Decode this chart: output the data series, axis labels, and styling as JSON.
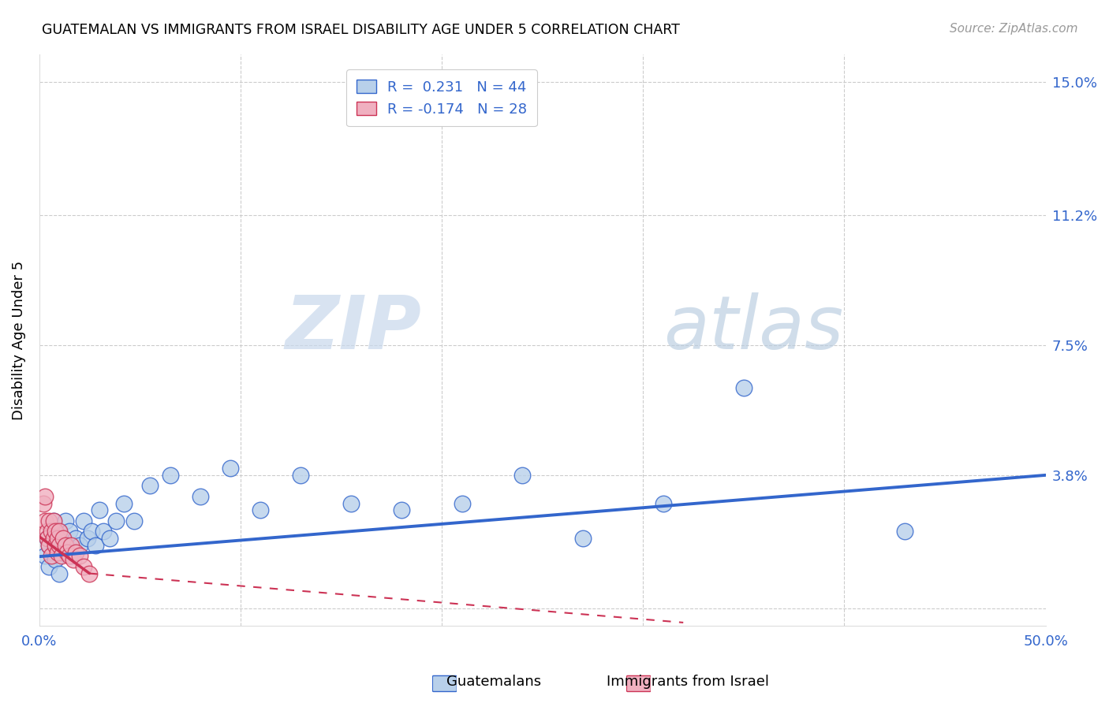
{
  "title": "GUATEMALAN VS IMMIGRANTS FROM ISRAEL DISABILITY AGE UNDER 5 CORRELATION CHART",
  "source": "Source: ZipAtlas.com",
  "ylabel": "Disability Age Under 5",
  "xlim": [
    0.0,
    0.5
  ],
  "ylim": [
    -0.005,
    0.158
  ],
  "ytick_positions": [
    0.0,
    0.038,
    0.075,
    0.112,
    0.15
  ],
  "ytick_labels": [
    "",
    "3.8%",
    "7.5%",
    "11.2%",
    "15.0%"
  ],
  "legend_r1": "R =  0.231   N = 44",
  "legend_r2": "R = -0.174   N = 28",
  "color_blue": "#b8d0ea",
  "color_pink": "#f0b0c0",
  "line_blue": "#3366cc",
  "line_pink": "#cc3355",
  "watermark_zip": "ZIP",
  "watermark_atlas": "atlas",
  "guatemalans_x": [
    0.003,
    0.004,
    0.005,
    0.005,
    0.006,
    0.007,
    0.007,
    0.008,
    0.008,
    0.009,
    0.01,
    0.01,
    0.011,
    0.012,
    0.013,
    0.014,
    0.015,
    0.016,
    0.018,
    0.02,
    0.022,
    0.024,
    0.026,
    0.028,
    0.03,
    0.032,
    0.035,
    0.038,
    0.042,
    0.047,
    0.055,
    0.065,
    0.08,
    0.095,
    0.11,
    0.13,
    0.155,
    0.18,
    0.21,
    0.24,
    0.27,
    0.31,
    0.35,
    0.43
  ],
  "guatemalans_y": [
    0.015,
    0.02,
    0.012,
    0.018,
    0.022,
    0.016,
    0.025,
    0.014,
    0.02,
    0.018,
    0.022,
    0.01,
    0.016,
    0.02,
    0.025,
    0.018,
    0.022,
    0.015,
    0.02,
    0.018,
    0.025,
    0.02,
    0.022,
    0.018,
    0.028,
    0.022,
    0.02,
    0.025,
    0.03,
    0.025,
    0.035,
    0.038,
    0.032,
    0.04,
    0.028,
    0.038,
    0.03,
    0.028,
    0.03,
    0.038,
    0.02,
    0.03,
    0.063,
    0.022
  ],
  "israel_x": [
    0.002,
    0.003,
    0.003,
    0.004,
    0.004,
    0.005,
    0.005,
    0.006,
    0.006,
    0.007,
    0.007,
    0.008,
    0.008,
    0.009,
    0.009,
    0.01,
    0.01,
    0.011,
    0.012,
    0.013,
    0.014,
    0.015,
    0.016,
    0.017,
    0.018,
    0.02,
    0.022,
    0.025
  ],
  "israel_y": [
    0.03,
    0.025,
    0.032,
    0.022,
    0.02,
    0.025,
    0.018,
    0.022,
    0.015,
    0.02,
    0.025,
    0.018,
    0.022,
    0.016,
    0.02,
    0.018,
    0.022,
    0.015,
    0.02,
    0.018,
    0.016,
    0.015,
    0.018,
    0.014,
    0.016,
    0.015,
    0.012,
    0.01
  ],
  "blue_line_x": [
    0.0,
    0.5
  ],
  "blue_line_y": [
    0.0148,
    0.038
  ],
  "pink_line_x": [
    0.0,
    0.025
  ],
  "pink_line_y": [
    0.0205,
    0.01
  ]
}
